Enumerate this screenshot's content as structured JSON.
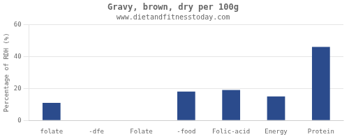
{
  "chart_data": {
    "type": "bar",
    "title": "Gravy, brown, dry per 100g",
    "subtitle": "www.dietandfitnesstoday.com",
    "ylabel": "Percentage of RDH (%)",
    "categories": [
      "folate",
      "-dfe",
      "Folate",
      "-food",
      "Folic-acid",
      "Energy",
      "Protein"
    ],
    "values": [
      11,
      0,
      0,
      18,
      19,
      15,
      46
    ],
    "color": "#2b4b8c",
    "ylim": [
      0,
      60
    ],
    "yticks": [
      0,
      20,
      40,
      60
    ],
    "grid": "y"
  }
}
